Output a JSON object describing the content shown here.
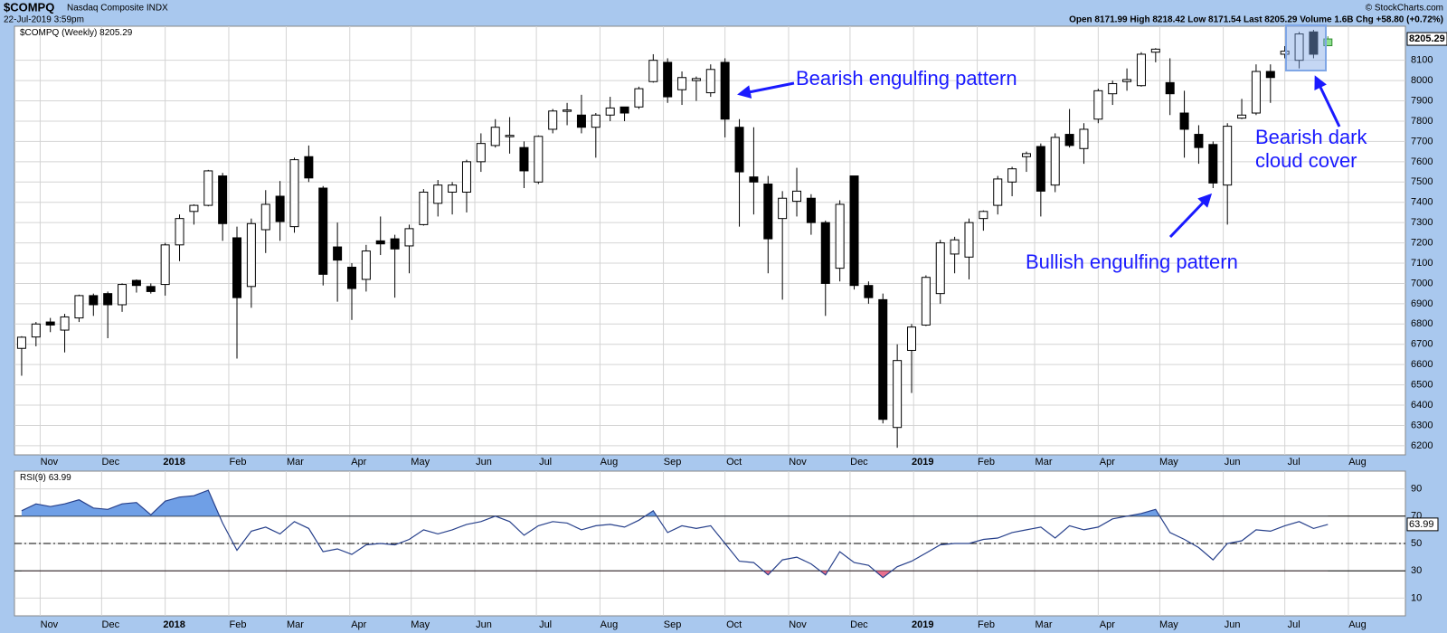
{
  "header": {
    "symbol": "$COMPQ",
    "name": "Nasdaq Composite INDX",
    "date": "22-Jul-2019 3:59pm",
    "quote": "Open 8171.99  High 8218.42  Low 8171.54  Last 8205.29  Volume 1.6B  Chg +58.80 (+0.72%)",
    "credit": "© StockCharts.com"
  },
  "annotations": {
    "bearish_engulfing": "Bearish engulfing pattern",
    "bullish_engulfing": "Bullish engulfing pattern",
    "dark_cloud_1": "Bearish dark",
    "dark_cloud_2": "cloud cover"
  },
  "chart_data": [
    {
      "type": "candlestick",
      "name": "$COMPQ (Weekly)",
      "categories": [
        null,
        null,
        null,
        null,
        null,
        null,
        null,
        null,
        null,
        null,
        null,
        null,
        null,
        null,
        null,
        null,
        null,
        null,
        null,
        null,
        null,
        null,
        null,
        null,
        null,
        null,
        null,
        null,
        null,
        null,
        null,
        null,
        null,
        null,
        null,
        null,
        null,
        null,
        null,
        null,
        null,
        null,
        null,
        null,
        null,
        null,
        null,
        null,
        null,
        null,
        null,
        null,
        null,
        null,
        null,
        null,
        null,
        null,
        null,
        null,
        null,
        null,
        null,
        null,
        null,
        null,
        null,
        null,
        null,
        null,
        null,
        null,
        null,
        null,
        null,
        null,
        null,
        null,
        null,
        null,
        null,
        null,
        null,
        null,
        null,
        null,
        null,
        null,
        null,
        null,
        null,
        null
      ],
      "open": [
        6680,
        6736,
        6810,
        6770,
        6830,
        6940,
        6950,
        6895,
        7015,
        6985,
        6995,
        7190,
        7355,
        7385,
        7530,
        7225,
        6985,
        7265,
        7430,
        7280,
        7625,
        7470,
        7180,
        7080,
        7020,
        7210,
        7220,
        7185,
        7290,
        7395,
        7450,
        7450,
        7600,
        7680,
        7725,
        7670,
        7500,
        7760,
        7850,
        7830,
        7770,
        7830,
        7870,
        7870,
        7995,
        8090,
        7955,
        8000,
        7940,
        8090,
        7770,
        7525,
        7490,
        7320,
        7405,
        7420,
        7300,
        7075,
        7530,
        6990,
        6920,
        6290,
        6670,
        6795,
        6950,
        7145,
        7130,
        7320,
        7385,
        7500,
        7625,
        7675,
        7485,
        7735,
        7665,
        7810,
        7935,
        7995,
        7975,
        8140,
        7990,
        7840,
        7735,
        7685,
        7485,
        7815,
        7840,
        8045,
        8130,
        8100,
        8240,
        8171.99
      ],
      "high": [
        6740,
        6810,
        6830,
        6850,
        6945,
        6950,
        6960,
        7000,
        7020,
        7000,
        7200,
        7340,
        7390,
        7560,
        7545,
        7280,
        7320,
        7460,
        7505,
        7620,
        7680,
        7480,
        7300,
        7100,
        7190,
        7330,
        7240,
        7290,
        7465,
        7510,
        7500,
        7610,
        7740,
        7810,
        7820,
        7700,
        7730,
        7860,
        7890,
        7930,
        7840,
        7920,
        7870,
        7970,
        8130,
        8110,
        8045,
        8020,
        8080,
        8110,
        7810,
        7770,
        7530,
        7455,
        7570,
        7440,
        7310,
        7410,
        7530,
        7010,
        6950,
        6700,
        6800,
        7040,
        7215,
        7230,
        7320,
        7360,
        7530,
        7575,
        7650,
        7690,
        7740,
        7860,
        7790,
        7960,
        8000,
        8060,
        8140,
        8160,
        8110,
        7950,
        7780,
        7700,
        7790,
        7910,
        8080,
        8080,
        8170,
        8240,
        8250,
        8218.42
      ],
      "low": [
        6545,
        6690,
        6760,
        6660,
        6810,
        6840,
        6730,
        6860,
        6955,
        6950,
        6940,
        7110,
        7290,
        7380,
        7210,
        6630,
        6880,
        7150,
        7210,
        7250,
        7500,
        6990,
        6910,
        6820,
        6960,
        7140,
        6930,
        7050,
        7285,
        7330,
        7340,
        7350,
        7550,
        7670,
        7640,
        7470,
        7490,
        7740,
        7780,
        7740,
        7620,
        7800,
        7800,
        7860,
        7990,
        7890,
        7880,
        7900,
        7920,
        7720,
        7280,
        7340,
        7050,
        6920,
        7330,
        7240,
        6840,
        7010,
        6970,
        6900,
        6310,
        6190,
        6460,
        6790,
        6900,
        7050,
        7020,
        7260,
        7340,
        7430,
        7550,
        7330,
        7450,
        7670,
        7590,
        7790,
        7880,
        7950,
        7970,
        8090,
        7830,
        7620,
        7590,
        7470,
        7290,
        7810,
        7830,
        7890,
        8110,
        8060,
        8110,
        8171.54
      ],
      "close": [
        6735,
        6800,
        6795,
        6835,
        6940,
        6895,
        6895,
        6995,
        6990,
        6960,
        7190,
        7320,
        7385,
        7555,
        7295,
        6930,
        7295,
        7390,
        7305,
        7610,
        7520,
        7045,
        7115,
        6975,
        7160,
        7195,
        7170,
        7270,
        7450,
        7485,
        7485,
        7600,
        7690,
        7770,
        7730,
        7555,
        7725,
        7850,
        7855,
        7770,
        7830,
        7865,
        7840,
        7960,
        8100,
        7920,
        8015,
        8010,
        8055,
        7810,
        7550,
        7500,
        7220,
        7420,
        7455,
        7300,
        7000,
        7390,
        6990,
        6930,
        6330,
        6620,
        6785,
        7030,
        7200,
        7215,
        7300,
        7355,
        7515,
        7565,
        7640,
        7455,
        7720,
        7680,
        7760,
        7950,
        7985,
        8005,
        8130,
        8155,
        7935,
        7760,
        7670,
        7495,
        7775,
        7830,
        8045,
        8015,
        8145,
        8230,
        8130,
        8205.29
      ],
      "up_color": "#ffffff",
      "down_color": "#000000",
      "current_color": "#8fe08f",
      "xlim": [
        -0.5,
        96.4
      ],
      "xticks": [
        {
          "value": 1.29,
          "label": "Nov"
        },
        {
          "value": 5.57,
          "label": "Dec"
        },
        {
          "value": 10.0,
          "label": "2018"
        },
        {
          "value": 14.43,
          "label": "Feb"
        },
        {
          "value": 18.43,
          "label": "Mar"
        },
        {
          "value": 22.86,
          "label": "Apr"
        },
        {
          "value": 27.14,
          "label": "May"
        },
        {
          "value": 31.57,
          "label": "Jun"
        },
        {
          "value": 35.86,
          "label": "Jul"
        },
        {
          "value": 40.29,
          "label": "Aug"
        },
        {
          "value": 44.71,
          "label": "Sep"
        },
        {
          "value": 49.0,
          "label": "Oct"
        },
        {
          "value": 53.43,
          "label": "Nov"
        },
        {
          "value": 57.71,
          "label": "Dec"
        },
        {
          "value": 62.14,
          "label": "2019"
        },
        {
          "value": 66.57,
          "label": "Feb"
        },
        {
          "value": 70.57,
          "label": "Mar"
        },
        {
          "value": 75.0,
          "label": "Apr"
        },
        {
          "value": 79.29,
          "label": "May"
        },
        {
          "value": 83.71,
          "label": "Jun"
        },
        {
          "value": 88.0,
          "label": "Jul"
        },
        {
          "value": 92.43,
          "label": "Aug"
        }
      ],
      "ylim": [
        6155,
        8268
      ],
      "yticks": [
        6200,
        6300,
        6400,
        6500,
        6600,
        6700,
        6800,
        6900,
        7000,
        7100,
        7200,
        7300,
        7400,
        7500,
        7600,
        7700,
        7800,
        7900,
        8000,
        8100
      ],
      "grid": true
    },
    {
      "type": "line",
      "name": "RSI(9)",
      "color": "#27408b",
      "overbought_color": "#6f9fe6",
      "oversold_color": "#e8708f",
      "values": [
        74,
        79,
        77,
        79,
        82,
        76,
        75,
        79,
        80,
        71,
        81,
        84,
        85,
        89,
        65,
        45,
        59,
        62,
        57,
        66,
        61,
        44,
        46,
        42,
        49,
        50,
        49,
        53,
        60,
        57,
        60,
        64,
        66,
        70,
        66,
        56,
        63,
        66,
        65,
        60,
        63,
        64,
        62,
        67,
        74,
        58,
        63,
        61,
        63,
        50,
        37,
        36,
        27,
        38,
        40,
        35,
        27,
        44,
        36,
        34,
        25,
        33,
        37,
        43,
        49,
        50,
        50,
        53,
        54,
        58,
        60,
        62,
        54,
        63,
        60,
        62,
        68,
        70,
        72,
        75,
        58,
        53,
        47,
        38,
        50,
        52,
        60,
        59,
        63,
        66,
        61,
        63.99
      ],
      "ylim": [
        -3,
        103
      ],
      "yticks": [
        10,
        30,
        50,
        70,
        90
      ],
      "reference_lines": [
        {
          "value": 70,
          "dashed": false
        },
        {
          "value": 50,
          "dashed": true
        },
        {
          "value": 30,
          "dashed": false
        }
      ],
      "grid": true
    }
  ]
}
